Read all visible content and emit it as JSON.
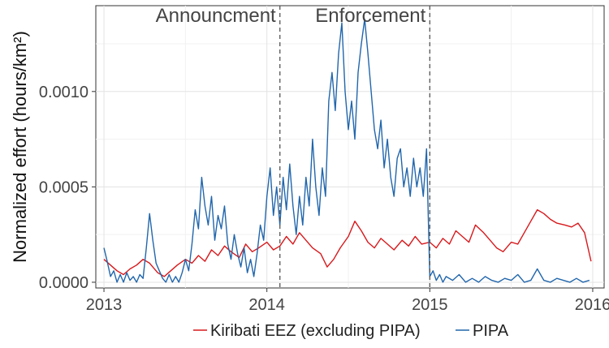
{
  "chart_data": {
    "type": "line",
    "title": "",
    "xlabel": "",
    "ylabel": "Normalized effort (hours/km²)",
    "xlim": [
      2012.95,
      2016.07
    ],
    "ylim": [
      -3e-05,
      0.00145
    ],
    "x_ticks": [
      {
        "value": 2013,
        "label": "2013"
      },
      {
        "value": 2014,
        "label": "2014"
      },
      {
        "value": 2015,
        "label": "2015"
      },
      {
        "value": 2016,
        "label": "2016"
      }
    ],
    "y_ticks": [
      {
        "value": 0.0,
        "label": "0.0000"
      },
      {
        "value": 0.0005,
        "label": "0.0005"
      },
      {
        "value": 0.001,
        "label": "0.0010"
      }
    ],
    "grid": true,
    "legend": "bottom",
    "annotations": [
      {
        "x": 2014.08,
        "text": "Announcment"
      },
      {
        "x": 2015.0,
        "text": "Enforcement"
      }
    ],
    "series": [
      {
        "name": "Kiribati EEZ (excluding PIPA)",
        "color": "#d7191c",
        "points": [
          [
            2013.0,
            0.00012
          ],
          [
            2013.04,
            9e-05
          ],
          [
            2013.08,
            6e-05
          ],
          [
            2013.12,
            4e-05
          ],
          [
            2013.16,
            7e-05
          ],
          [
            2013.2,
            9e-05
          ],
          [
            2013.24,
            0.00012
          ],
          [
            2013.28,
            0.0001
          ],
          [
            2013.33,
            5e-05
          ],
          [
            2013.37,
            3e-05
          ],
          [
            2013.41,
            6e-05
          ],
          [
            2013.45,
            9e-05
          ],
          [
            2013.5,
            0.00012
          ],
          [
            2013.54,
            0.0001
          ],
          [
            2013.58,
            0.00014
          ],
          [
            2013.62,
            0.00011
          ],
          [
            2013.66,
            0.00017
          ],
          [
            2013.7,
            0.00014
          ],
          [
            2013.74,
            0.00019
          ],
          [
            2013.78,
            0.00016
          ],
          [
            2013.83,
            0.00013
          ],
          [
            2013.87,
            0.0002
          ],
          [
            2013.91,
            0.00016
          ],
          [
            2013.95,
            0.00018
          ],
          [
            2014.0,
            0.00021
          ],
          [
            2014.04,
            0.00017
          ],
          [
            2014.08,
            0.00019
          ],
          [
            2014.12,
            0.00024
          ],
          [
            2014.16,
            0.0002
          ],
          [
            2014.2,
            0.00026
          ],
          [
            2014.24,
            0.00022
          ],
          [
            2014.28,
            0.00018
          ],
          [
            2014.33,
            0.00015
          ],
          [
            2014.37,
            8e-05
          ],
          [
            2014.41,
            0.00012
          ],
          [
            2014.45,
            0.00018
          ],
          [
            2014.5,
            0.00024
          ],
          [
            2014.54,
            0.00032
          ],
          [
            2014.58,
            0.00027
          ],
          [
            2014.62,
            0.00021
          ],
          [
            2014.66,
            0.00018
          ],
          [
            2014.7,
            0.00023
          ],
          [
            2014.74,
            0.0002
          ],
          [
            2014.78,
            0.00017
          ],
          [
            2014.83,
            0.00022
          ],
          [
            2014.87,
            0.00019
          ],
          [
            2014.91,
            0.00024
          ],
          [
            2014.95,
            0.0002
          ],
          [
            2015.0,
            0.00021
          ],
          [
            2015.04,
            0.00018
          ],
          [
            2015.08,
            0.00023
          ],
          [
            2015.12,
            0.0002
          ],
          [
            2015.16,
            0.00027
          ],
          [
            2015.2,
            0.00024
          ],
          [
            2015.24,
            0.00021
          ],
          [
            2015.28,
            0.0003
          ],
          [
            2015.33,
            0.00026
          ],
          [
            2015.37,
            0.00022
          ],
          [
            2015.41,
            0.00018
          ],
          [
            2015.45,
            0.00016
          ],
          [
            2015.5,
            0.00021
          ],
          [
            2015.54,
            0.0002
          ],
          [
            2015.58,
            0.00026
          ],
          [
            2015.62,
            0.00032
          ],
          [
            2015.66,
            0.00038
          ],
          [
            2015.7,
            0.00036
          ],
          [
            2015.74,
            0.00033
          ],
          [
            2015.78,
            0.00031
          ],
          [
            2015.83,
            0.0003
          ],
          [
            2015.87,
            0.00029
          ],
          [
            2015.91,
            0.00031
          ],
          [
            2015.95,
            0.00026
          ],
          [
            2015.99,
            0.00011
          ]
        ]
      },
      {
        "name": "PIPA",
        "color": "#2166ac",
        "points": [
          [
            2013.0,
            0.00018
          ],
          [
            2013.02,
            0.00011
          ],
          [
            2013.04,
            3e-05
          ],
          [
            2013.06,
            6e-05
          ],
          [
            2013.08,
            0.0
          ],
          [
            2013.1,
            4e-05
          ],
          [
            2013.12,
            0.0
          ],
          [
            2013.14,
            5e-05
          ],
          [
            2013.16,
            1e-05
          ],
          [
            2013.18,
            3e-05
          ],
          [
            2013.2,
            0.0
          ],
          [
            2013.22,
            4e-05
          ],
          [
            2013.24,
            2e-05
          ],
          [
            2013.26,
            0.00018
          ],
          [
            2013.28,
            0.00036
          ],
          [
            2013.3,
            0.00022
          ],
          [
            2013.32,
            0.0001
          ],
          [
            2013.34,
            6e-05
          ],
          [
            2013.36,
            2e-05
          ],
          [
            2013.38,
            0.0
          ],
          [
            2013.4,
            4e-05
          ],
          [
            2013.42,
            0.0
          ],
          [
            2013.44,
            3e-05
          ],
          [
            2013.46,
            0.0
          ],
          [
            2013.48,
            5e-05
          ],
          [
            2013.5,
            0.00012
          ],
          [
            2013.52,
            6e-05
          ],
          [
            2013.54,
            0.0002
          ],
          [
            2013.56,
            0.00038
          ],
          [
            2013.58,
            0.00028
          ],
          [
            2013.6,
            0.00055
          ],
          [
            2013.62,
            0.0004
          ],
          [
            2013.64,
            0.0003
          ],
          [
            2013.66,
            0.00045
          ],
          [
            2013.68,
            0.00022
          ],
          [
            2013.7,
            0.00035
          ],
          [
            2013.72,
            0.00028
          ],
          [
            2013.74,
            0.0004
          ],
          [
            2013.76,
            0.0002
          ],
          [
            2013.78,
            0.00012
          ],
          [
            2013.8,
            0.00025
          ],
          [
            2013.82,
            0.00015
          ],
          [
            2013.84,
            8e-05
          ],
          [
            2013.86,
            0.00018
          ],
          [
            2013.88,
            5e-05
          ],
          [
            2013.9,
            0.00012
          ],
          [
            2013.92,
            3e-05
          ],
          [
            2013.94,
            0.00015
          ],
          [
            2013.96,
            0.0003
          ],
          [
            2013.98,
            0.00022
          ],
          [
            2014.0,
            0.00045
          ],
          [
            2014.02,
            0.0006
          ],
          [
            2014.04,
            0.00035
          ],
          [
            2014.06,
            0.0005
          ],
          [
            2014.08,
            0.0003
          ],
          [
            2014.1,
            0.00055
          ],
          [
            2014.12,
            0.00038
          ],
          [
            2014.14,
            0.00062
          ],
          [
            2014.16,
            0.0004
          ],
          [
            2014.18,
            0.00025
          ],
          [
            2014.2,
            0.00045
          ],
          [
            2014.22,
            0.0003
          ],
          [
            2014.24,
            0.00055
          ],
          [
            2014.26,
            0.0004
          ],
          [
            2014.28,
            0.00075
          ],
          [
            2014.3,
            0.0005
          ],
          [
            2014.32,
            0.00035
          ],
          [
            2014.34,
            0.0006
          ],
          [
            2014.36,
            0.00045
          ],
          [
            2014.38,
            0.00095
          ],
          [
            2014.4,
            0.0011
          ],
          [
            2014.42,
            0.0009
          ],
          [
            2014.44,
            0.0012
          ],
          [
            2014.46,
            0.00136
          ],
          [
            2014.48,
            0.001
          ],
          [
            2014.5,
            0.0008
          ],
          [
            2014.52,
            0.00095
          ],
          [
            2014.54,
            0.00075
          ],
          [
            2014.56,
            0.0011
          ],
          [
            2014.58,
            0.00125
          ],
          [
            2014.6,
            0.00138
          ],
          [
            2014.62,
            0.0012
          ],
          [
            2014.64,
            0.001
          ],
          [
            2014.66,
            0.0008
          ],
          [
            2014.68,
            0.0007
          ],
          [
            2014.7,
            0.00085
          ],
          [
            2014.72,
            0.0006
          ],
          [
            2014.74,
            0.00075
          ],
          [
            2014.76,
            0.00055
          ],
          [
            2014.78,
            0.00045
          ],
          [
            2014.8,
            0.00065
          ],
          [
            2014.82,
            0.0007
          ],
          [
            2014.84,
            0.0005
          ],
          [
            2014.86,
            0.0006
          ],
          [
            2014.88,
            0.00045
          ],
          [
            2014.9,
            0.00065
          ],
          [
            2014.92,
            0.0005
          ],
          [
            2014.94,
            0.0006
          ],
          [
            2014.96,
            0.00045
          ],
          [
            2014.98,
            0.0007
          ],
          [
            2015.0,
            3e-05
          ],
          [
            2015.02,
            6e-05
          ],
          [
            2015.04,
            1e-05
          ],
          [
            2015.06,
            4e-05
          ],
          [
            2015.08,
            0.0
          ],
          [
            2015.1,
            3e-05
          ],
          [
            2015.14,
            1e-05
          ],
          [
            2015.18,
            4e-05
          ],
          [
            2015.22,
            0.0
          ],
          [
            2015.26,
            2e-05
          ],
          [
            2015.3,
            0.0
          ],
          [
            2015.34,
            3e-05
          ],
          [
            2015.38,
            1e-05
          ],
          [
            2015.42,
            0.0
          ],
          [
            2015.46,
            2e-05
          ],
          [
            2015.5,
            1e-05
          ],
          [
            2015.54,
            4e-05
          ],
          [
            2015.58,
            0.0
          ],
          [
            2015.62,
            1e-05
          ],
          [
            2015.66,
            7e-05
          ],
          [
            2015.7,
            1e-05
          ],
          [
            2015.74,
            0.0
          ],
          [
            2015.78,
            2e-05
          ],
          [
            2015.82,
            1e-05
          ],
          [
            2015.86,
            0.0
          ],
          [
            2015.9,
            2e-05
          ],
          [
            2015.94,
            0.0
          ],
          [
            2015.98,
            1e-05
          ]
        ]
      }
    ]
  }
}
